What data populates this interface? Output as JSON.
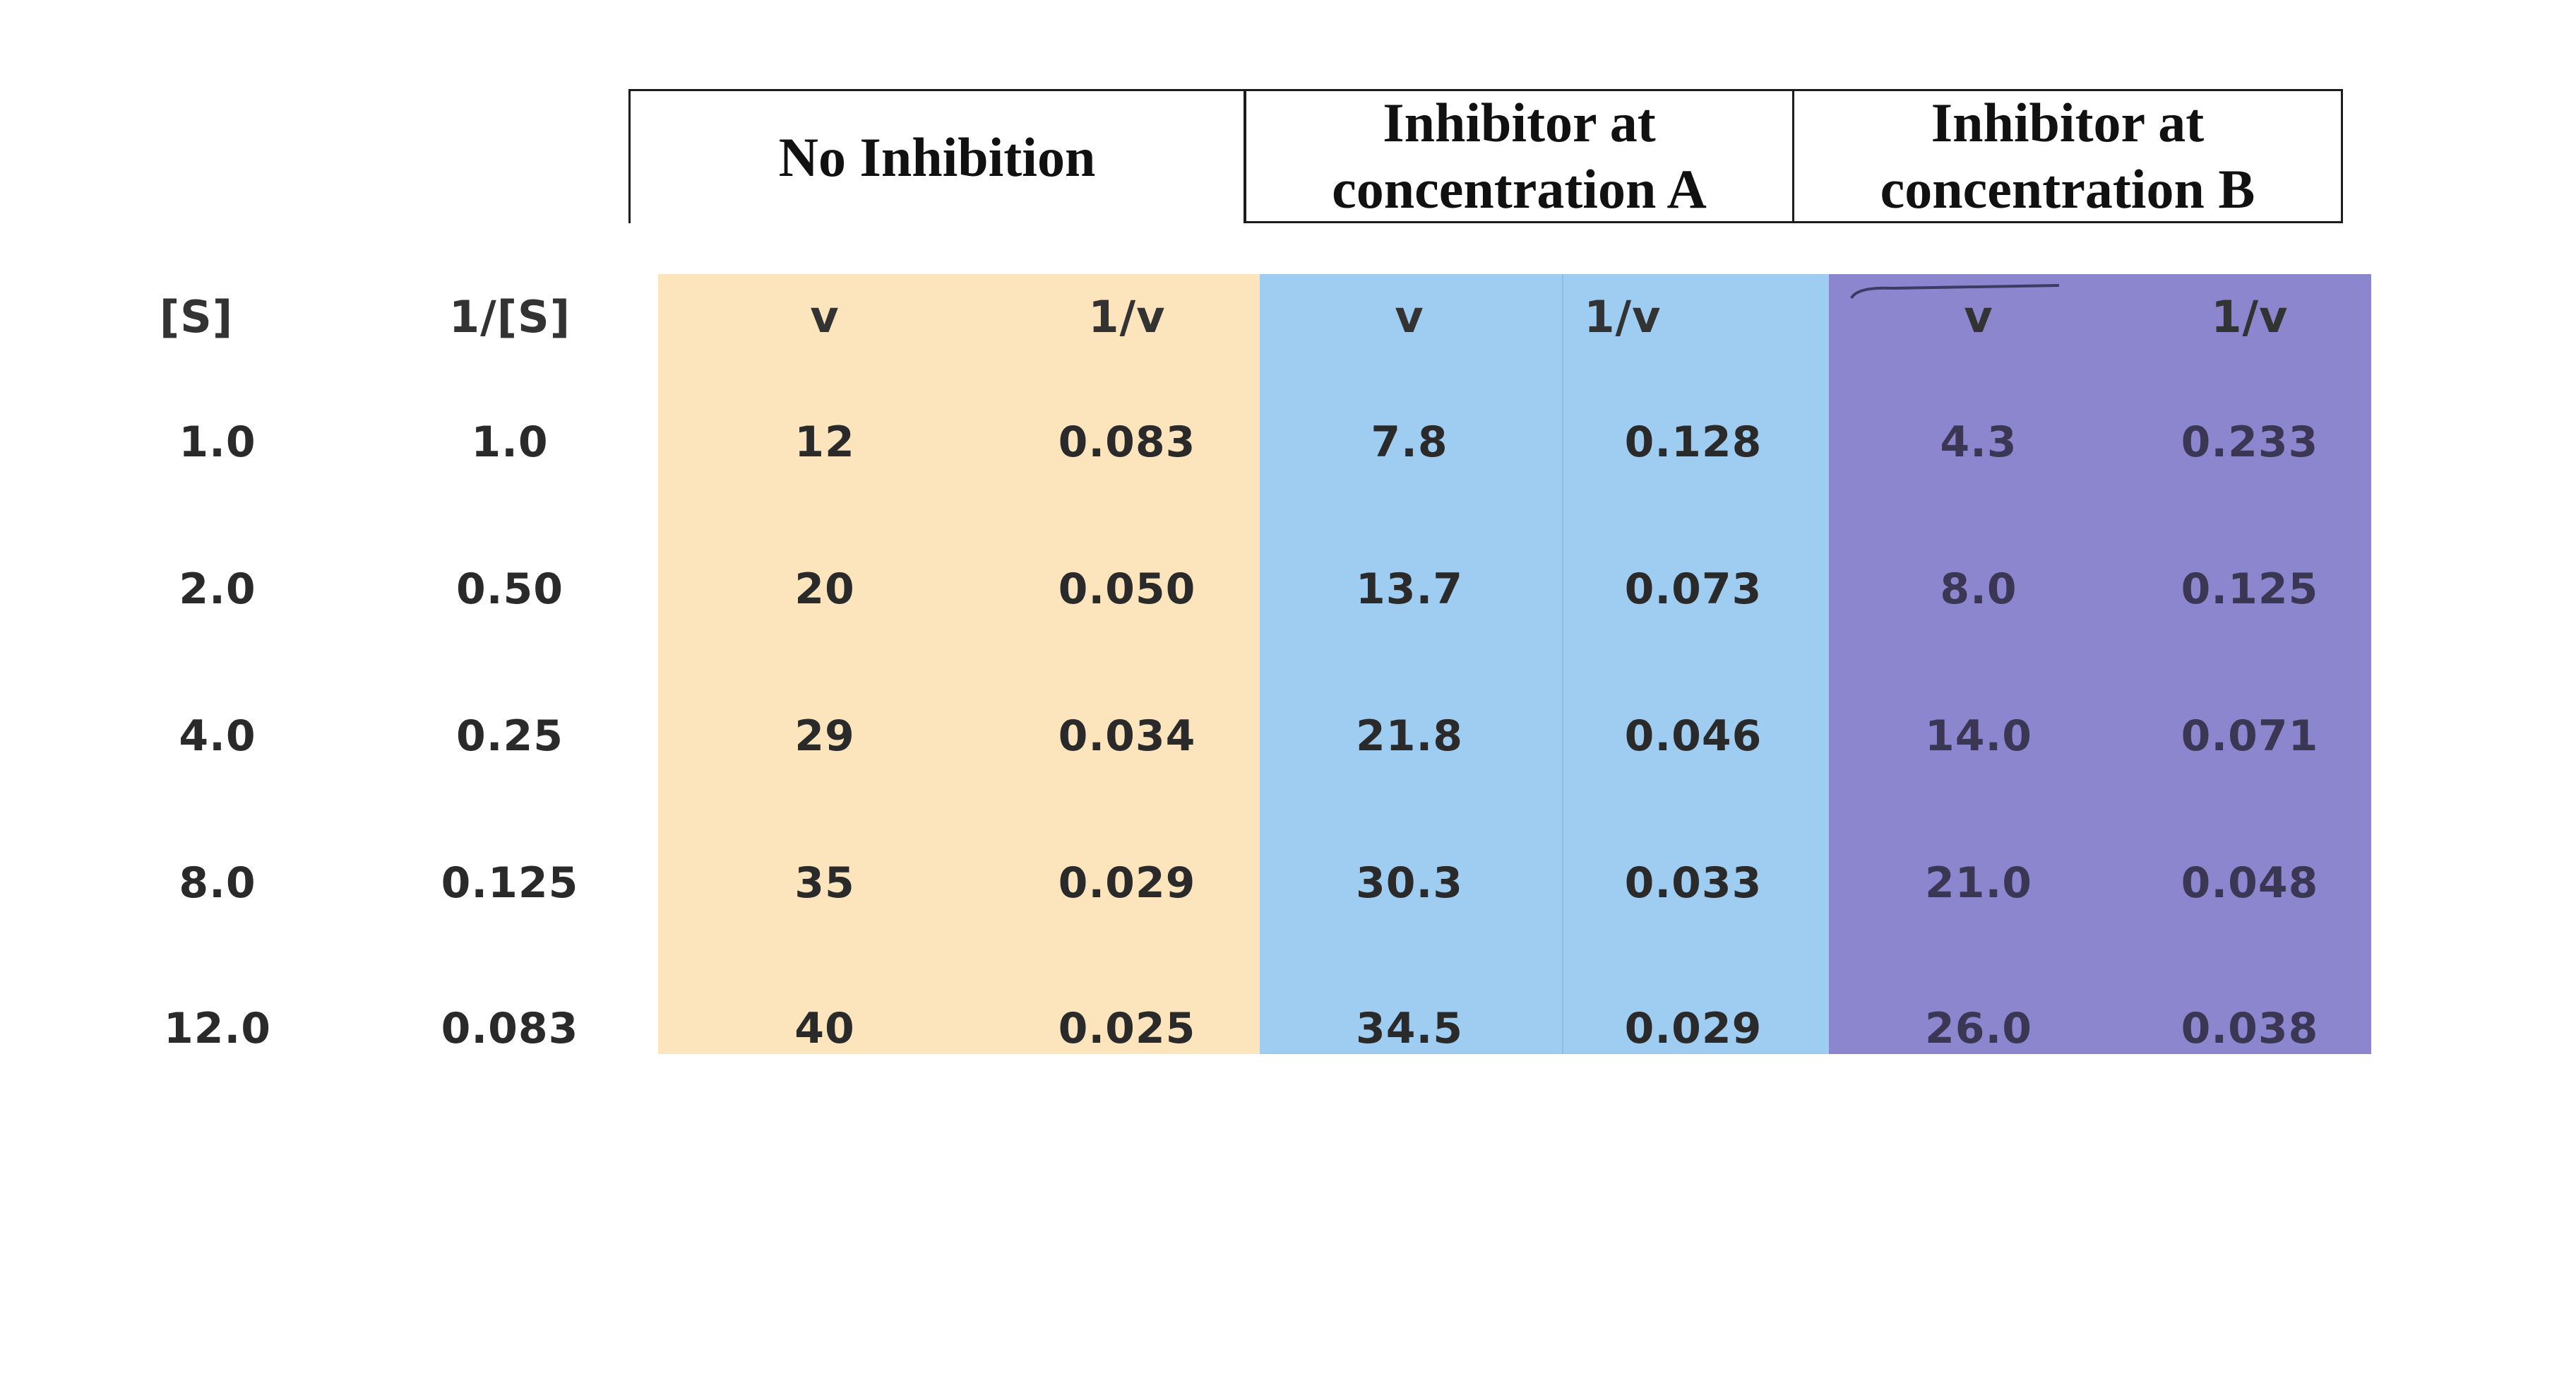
{
  "group_headers": {
    "no_inhibition": "No Inhibition",
    "inhibitor_a": "Inhibitor at\nconcentration A",
    "inhibitor_b": "Inhibitor at\nconcentration B"
  },
  "column_headers": [
    "[S]",
    "1/[S]",
    "v",
    "1/v",
    "v",
    "1/v",
    "v",
    "1/v"
  ],
  "rows": [
    [
      "1.0",
      "1.0",
      "12",
      "0.083",
      "7.8",
      "0.128",
      "4.3",
      "0.233"
    ],
    [
      "2.0",
      "0.50",
      "20",
      "0.050",
      "13.7",
      "0.073",
      "8.0",
      "0.125"
    ],
    [
      "4.0",
      "0.25",
      "29",
      "0.034",
      "21.8",
      "0.046",
      "14.0",
      "0.071"
    ],
    [
      "8.0",
      "0.125",
      "35",
      "0.029",
      "30.3",
      "0.033",
      "21.0",
      "0.048"
    ],
    [
      "12.0",
      "0.083",
      "40",
      "0.025",
      "34.5",
      "0.029",
      "26.0",
      "0.038"
    ]
  ],
  "colors": {
    "no_inhibition_fill": "#fce4bc",
    "inhibitor_a_fill": "#9fcdf1",
    "inhibitor_b_fill": "#8b86cd"
  }
}
